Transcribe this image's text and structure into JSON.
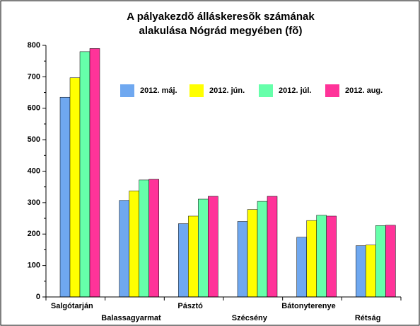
{
  "chart_data": {
    "type": "bar",
    "title": [
      "A pályakezdõ álláskeresõk számának",
      "alakulása Nógrád megyében (fõ)"
    ],
    "categories": [
      "Salgótarján",
      "Balassagyarmat",
      "Pásztó",
      "Szécsény",
      "Bátonyterenye",
      "Rétság"
    ],
    "series": [
      {
        "name": "2012. máj.",
        "color": "#6fa8f0",
        "values": [
          635,
          307,
          233,
          240,
          190,
          163
        ]
      },
      {
        "name": "2012. jún.",
        "color": "#ffff00",
        "values": [
          697,
          337,
          257,
          278,
          243,
          165
        ]
      },
      {
        "name": "2012. júl.",
        "color": "#66ffaa",
        "values": [
          780,
          372,
          311,
          304,
          260,
          227
        ]
      },
      {
        "name": "2012. aug.",
        "color": "#ff3399",
        "values": [
          790,
          374,
          320,
          320,
          257,
          228
        ]
      }
    ],
    "ylim": [
      0,
      800
    ],
    "yticks": [
      0,
      100,
      200,
      300,
      400,
      500,
      600,
      700,
      800
    ],
    "legend": "upper right"
  }
}
